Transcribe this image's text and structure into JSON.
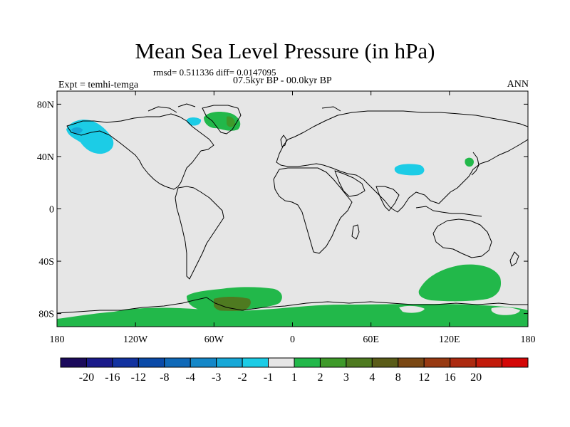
{
  "title": "Mean Sea Level Pressure (in hPa)",
  "stats_text": "rmsd= 0.511336 diff= 0.0147095",
  "period_text": "07.5kyr BP - 00.0kyr BP",
  "experiment_text": "Expt = temhi-temga",
  "season_text": "ANN",
  "map": {
    "projection": "cylindrical-equidistant",
    "lon_range": [
      -180,
      180
    ],
    "lat_range": [
      -90,
      90
    ],
    "background_color": "#e6e6e6",
    "x_ticks": [
      {
        "lon": -180,
        "label": "180"
      },
      {
        "lon": -120,
        "label": "120W"
      },
      {
        "lon": -60,
        "label": "60W"
      },
      {
        "lon": 0,
        "label": "0"
      },
      {
        "lon": 60,
        "label": "60E"
      },
      {
        "lon": 120,
        "label": "120E"
      },
      {
        "lon": 180,
        "label": "180"
      }
    ],
    "y_ticks": [
      {
        "lat": 80,
        "label": "80N"
      },
      {
        "lat": 40,
        "label": "40N"
      },
      {
        "lat": 0,
        "label": "0"
      },
      {
        "lat": -40,
        "label": "40S"
      },
      {
        "lat": -80,
        "label": "80S"
      }
    ]
  },
  "colorbar": {
    "colors": [
      "#1b0a5c",
      "#1a1a8a",
      "#1232a0",
      "#0a4aa8",
      "#0f69b8",
      "#1487c8",
      "#17a8d8",
      "#1ccce6",
      "#e6e6e6",
      "#22b84a",
      "#3e9a2a",
      "#4e7a20",
      "#5a5c18",
      "#7a4814",
      "#983a12",
      "#ac2a10",
      "#c21a0a",
      "#d40606"
    ],
    "labels": [
      "-20",
      "-16",
      "-12",
      "-8",
      "-4",
      "-3",
      "-2",
      "-1",
      "1",
      "2",
      "3",
      "4",
      "8",
      "12",
      "16",
      "20"
    ]
  }
}
